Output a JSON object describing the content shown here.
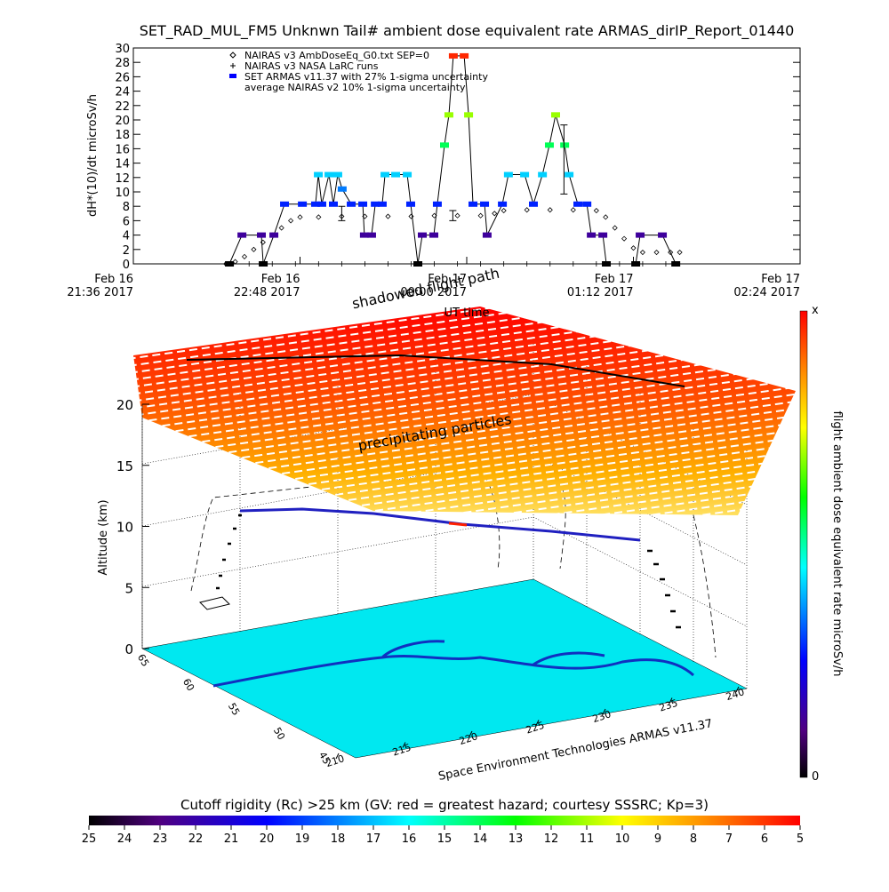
{
  "chart_data": [
    {
      "type": "line",
      "title": "SET_RAD_MUL_FM5 Unknwn Tail#  ambient dose equivalent rate ARMAS_dirIP_Report_01440",
      "y_label": "dH*(10)/dt microSv/h",
      "x_label": "UT time",
      "xlim": [
        0,
        288
      ],
      "xticks": [
        {
          "value": 0,
          "label": "Feb 16\n21:36 2017"
        },
        {
          "value": 72,
          "label": "Feb 16\n22:48 2017"
        },
        {
          "value": 144,
          "label": "Feb 17\n00:00 2017"
        },
        {
          "value": 216,
          "label": "Feb 17\n01:12 2017"
        },
        {
          "value": 288,
          "label": "Feb 17\n02:24 2017"
        }
      ],
      "ylim": [
        0,
        30
      ],
      "yticks": [
        0,
        2,
        4,
        6,
        8,
        10,
        12,
        14,
        16,
        18,
        20,
        22,
        24,
        26,
        28,
        30
      ],
      "series": [
        {
          "name": "NAIRAS v3 AmbDoseEq_G0.txt SEP=0",
          "color": "#000000",
          "marker": "diamond",
          "x": [
            40,
            44,
            48,
            52,
            56,
            60,
            64,
            68,
            72,
            80,
            90,
            100,
            110,
            120,
            130,
            140,
            150,
            156,
            160,
            170,
            180,
            190,
            200,
            204,
            208,
            212,
            216,
            220,
            226,
            232,
            236
          ],
          "values": [
            0,
            0.3,
            1,
            2,
            3,
            4,
            5,
            6,
            6.5,
            6.5,
            6.6,
            6.6,
            6.6,
            6.6,
            6.7,
            6.7,
            6.7,
            7,
            7.4,
            7.5,
            7.5,
            7.5,
            7.4,
            6.5,
            5,
            3.5,
            2.2,
            1.6,
            1.6,
            1.6,
            1.6
          ]
        },
        {
          "name": "NAIRAS v3 NASA LaRC runs",
          "color": "#000000",
          "marker": "plus",
          "x": [
            42,
            50,
            60,
            70,
            80,
            90,
            100,
            110,
            120,
            130,
            140,
            150,
            160,
            170,
            180,
            190,
            200,
            210,
            220,
            230,
            235
          ],
          "values": [
            0,
            0,
            0,
            0,
            0,
            0,
            0,
            0,
            0,
            0,
            0,
            0,
            0,
            0,
            0,
            0,
            0,
            0,
            0,
            0,
            0
          ]
        },
        {
          "name": "SET ARMAS v11.37 with 27% 1-sigma uncertainty",
          "color": "#0000ff",
          "marker": "dot",
          "x": [
            41.5,
            46.9,
            55.3,
            56.1,
            60.7,
            65.3,
            73,
            78.7,
            79.9,
            81.4,
            84.5,
            86.4,
            88.3,
            90.2,
            94.1,
            99.1,
            99.8,
            102.9,
            104.5,
            107.5,
            108.7,
            113.3,
            118.3,
            119.8,
            122.9,
            124.8,
            129.8,
            131.3,
            134.4,
            136.3,
            138.2,
            142.9,
            144.8,
            146.7,
            151.7,
            152.8,
            159.4,
            162,
            169,
            172.8,
            176.7,
            179.7,
            182.4,
            186.3,
            188.2,
            192,
            195.9,
            197.8,
            202.8,
            204.3,
            217,
            218.9,
            228.5,
            234.3
          ],
          "values": [
            0,
            4,
            4,
            0,
            4,
            8.3,
            8.3,
            8.3,
            12.4,
            8.3,
            12.4,
            8.3,
            12.4,
            10.4,
            8.3,
            8.3,
            4,
            4,
            8.3,
            8.3,
            12.4,
            12.4,
            12.4,
            8.3,
            0,
            4,
            4,
            8.3,
            16.5,
            20.7,
            28.9,
            28.9,
            20.7,
            8.3,
            8.3,
            4,
            8.3,
            12.4,
            12.4,
            8.3,
            12.4,
            16.5,
            20.7,
            16.5,
            12.4,
            8.3,
            8.3,
            4,
            4,
            0,
            0,
            4,
            4,
            0
          ]
        },
        {
          "name": "average NAIRAS v2 10% 1-sigma uncertainty",
          "color": "#000000",
          "marker": "errorbar",
          "x": [
            90,
            138,
            186
          ],
          "values": [
            7,
            6.7,
            14.5
          ],
          "errors": [
            1,
            0.7,
            4.8
          ]
        }
      ]
    },
    {
      "type": "3d",
      "z_label": "Altitude (km)",
      "zlim": [
        0,
        20
      ],
      "zticks": [
        0,
        5,
        10,
        15,
        20
      ],
      "xticks": [
        210,
        215,
        220,
        225,
        230,
        235,
        240
      ],
      "yticks": [
        65,
        60,
        55,
        50,
        45
      ],
      "annotations": [
        "shadowed flight path",
        "precipitating particles",
        "Space Environment Technologies ARMAS v11.37"
      ]
    },
    {
      "type": "colorbar",
      "label": "flight ambient dose equivalent rate microSv/h",
      "ticks": [
        0,
        "x"
      ]
    },
    {
      "type": "colorbar",
      "title": "Cutoff rigidity (Rc) >25 km (GV: red = greatest hazard; courtesy SSSRC; Kp=3)",
      "lim": [
        25,
        5
      ],
      "ticks": [
        25,
        24,
        23,
        22,
        21,
        20,
        19,
        18,
        17,
        16,
        15,
        14,
        13,
        12,
        11,
        10,
        9,
        8,
        7,
        6,
        5
      ]
    }
  ]
}
